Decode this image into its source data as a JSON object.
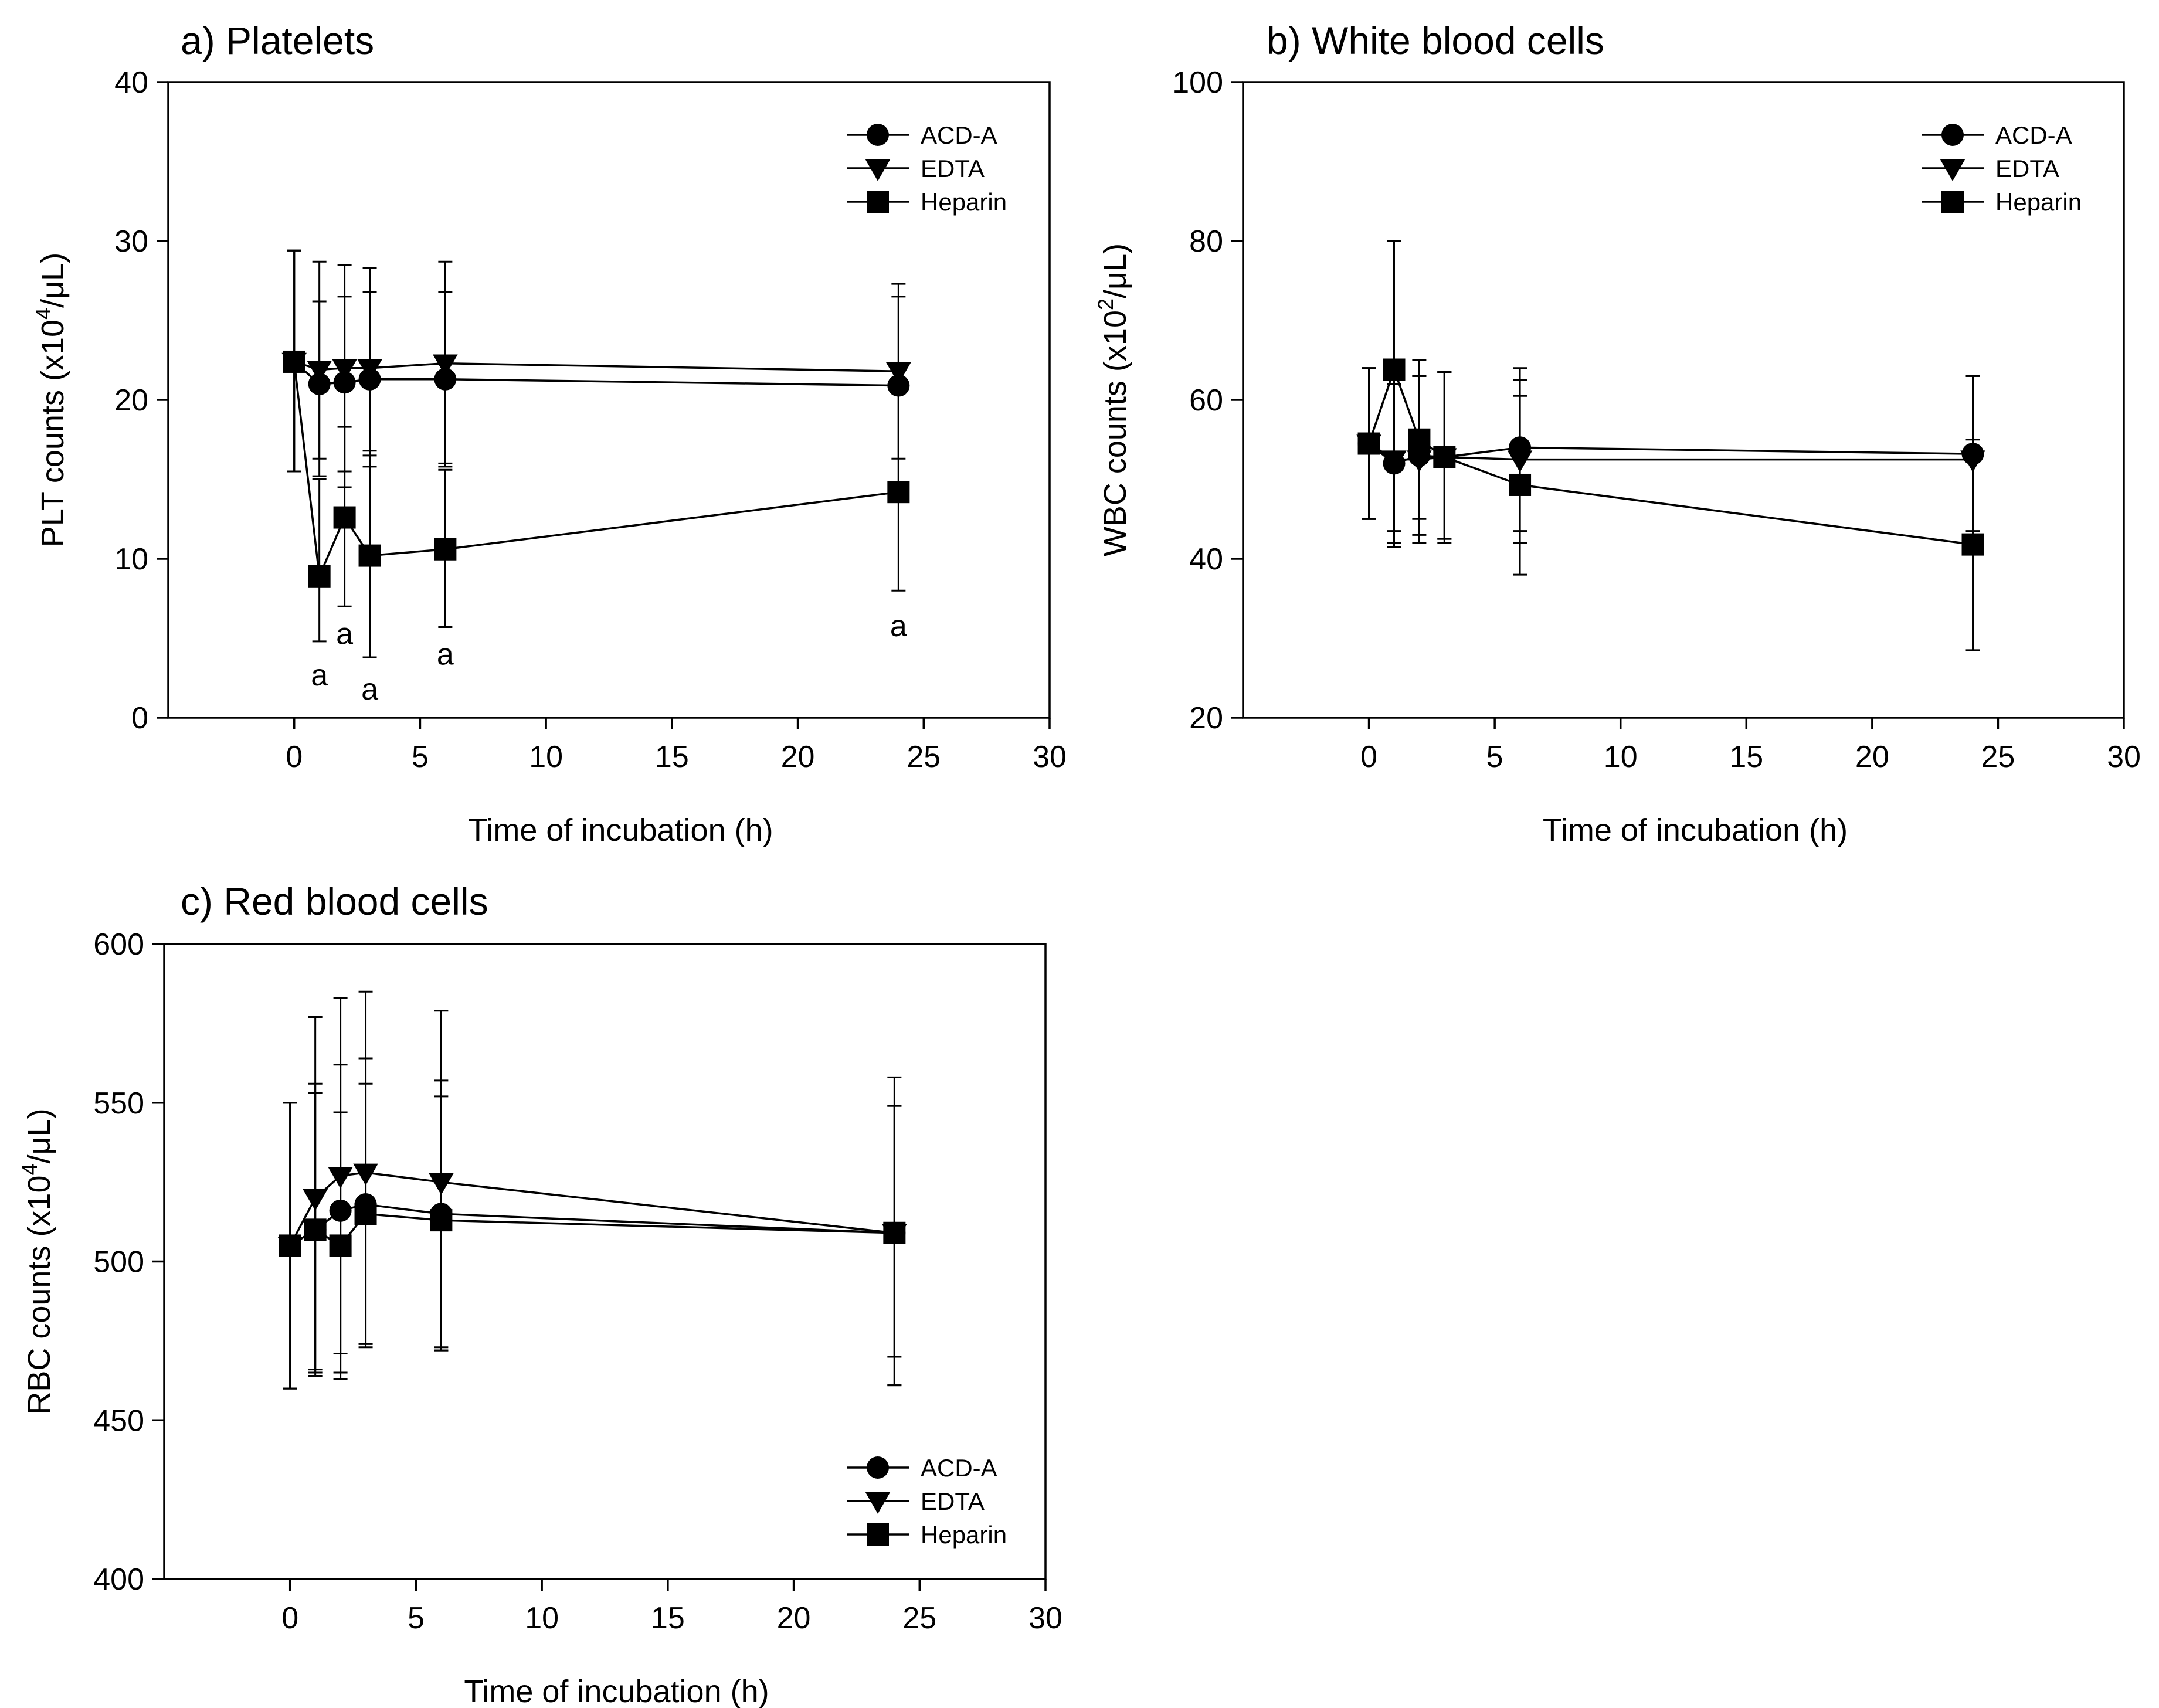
{
  "figure": {
    "series_names": [
      "ACD-A",
      "EDTA",
      "Heparin"
    ],
    "marker_shapes": [
      "circle",
      "triangle-down",
      "square"
    ],
    "color": "#000000"
  },
  "chart_data": [
    {
      "type": "line",
      "title": "a) Platelets",
      "xlabel": "Time of incubation (h)",
      "ylabel_main": "PLT counts (x10",
      "ylabel_sup": "4",
      "ylabel_tail": "/μL)",
      "xlim": [
        -5,
        30
      ],
      "ylim": [
        0,
        40
      ],
      "xticks": [
        0,
        5,
        10,
        15,
        20,
        25,
        30
      ],
      "yticks": [
        0,
        10,
        20,
        30,
        40
      ],
      "x": [
        0,
        1,
        2,
        3,
        6,
        24
      ],
      "legend_position": "top-right",
      "series": [
        {
          "name": "ACD-A",
          "values": [
            22.4,
            21.0,
            21.1,
            21.3,
            21.3,
            20.9
          ],
          "err_low": [
            15.5,
            16.3,
            14.5,
            16.5,
            15.8,
            14.5
          ],
          "err_high": [
            29.4,
            26.2,
            26.5,
            26.8,
            26.8,
            26.5
          ]
        },
        {
          "name": "EDTA",
          "values": [
            22.4,
            21.9,
            22.0,
            22.0,
            22.3,
            21.8
          ],
          "err_low": [
            15.5,
            15.2,
            15.5,
            15.8,
            16.0,
            16.3
          ],
          "err_high": [
            29.4,
            28.7,
            28.5,
            28.3,
            28.7,
            27.3
          ]
        },
        {
          "name": "Heparin",
          "values": [
            22.4,
            8.9,
            12.6,
            10.2,
            10.6,
            14.2
          ],
          "err_low": [
            15.5,
            4.8,
            7.0,
            3.8,
            5.7,
            8.0
          ],
          "err_high": [
            29.4,
            15.0,
            18.3,
            16.8,
            15.6,
            20.4
          ]
        }
      ],
      "annotations": [
        {
          "x": 1,
          "y": 2.7,
          "text": "a"
        },
        {
          "x": 2,
          "y": 5.3,
          "text": "a"
        },
        {
          "x": 3,
          "y": 1.8,
          "text": "a"
        },
        {
          "x": 6,
          "y": 4.0,
          "text": "a"
        },
        {
          "x": 24,
          "y": 5.8,
          "text": "a"
        }
      ]
    },
    {
      "type": "line",
      "title": "b) White blood cells",
      "xlabel": "Time of incubation (h)",
      "ylabel_main": "WBC counts (x10",
      "ylabel_sup": "2",
      "ylabel_tail": "/μL)",
      "xlim": [
        -5,
        30
      ],
      "ylim": [
        20,
        100
      ],
      "xticks": [
        0,
        5,
        10,
        15,
        20,
        25,
        30
      ],
      "yticks": [
        20,
        40,
        60,
        80,
        100
      ],
      "x": [
        0,
        1,
        2,
        3,
        6,
        24
      ],
      "legend_position": "top-right",
      "series": [
        {
          "name": "ACD-A",
          "values": [
            54.5,
            52.0,
            53.0,
            52.8,
            54.0,
            53.2
          ],
          "err_low": [
            45.0,
            42.0,
            43.0,
            42.5,
            42.0,
            43.5
          ],
          "err_high": [
            64.0,
            62.0,
            63.0,
            63.5,
            64.0,
            63.0
          ]
        },
        {
          "name": "EDTA",
          "values": [
            54.5,
            52.5,
            52.5,
            52.8,
            52.5,
            52.5
          ],
          "err_low": [
            45.0,
            43.5,
            42.0,
            42.5,
            43.5,
            42.5
          ],
          "err_high": [
            64.0,
            62.5,
            63.0,
            63.5,
            62.5,
            63.0
          ]
        },
        {
          "name": "Heparin",
          "values": [
            54.5,
            63.8,
            55.0,
            52.8,
            49.3,
            41.8
          ],
          "err_low": [
            45.0,
            41.5,
            45.0,
            42.0,
            38.0,
            28.5
          ],
          "err_high": [
            64.0,
            80.0,
            65.0,
            63.5,
            60.5,
            55.0
          ]
        }
      ]
    },
    {
      "type": "line",
      "title": "c) Red blood cells",
      "xlabel": "Time of incubation (h)",
      "ylabel_main": "RBC counts (x10",
      "ylabel_sup": "4",
      "ylabel_tail": "/μL)",
      "xlim": [
        -5,
        30
      ],
      "ylim": [
        400,
        600
      ],
      "xticks": [
        0,
        5,
        10,
        15,
        20,
        25,
        30
      ],
      "yticks": [
        400,
        450,
        500,
        550,
        600
      ],
      "x": [
        0,
        1,
        2,
        3,
        6,
        24
      ],
      "legend_position": "bottom-right",
      "series": [
        {
          "name": "ACD-A",
          "values": [
            505,
            510,
            516,
            518,
            515,
            509
          ],
          "err_low": [
            460,
            466,
            471,
            474,
            473,
            470
          ],
          "err_high": [
            550,
            553,
            562,
            564,
            557,
            549
          ]
        },
        {
          "name": "EDTA",
          "values": [
            505,
            520,
            527,
            528,
            525,
            509
          ],
          "err_low": [
            460,
            464,
            465,
            474,
            472,
            461
          ],
          "err_high": [
            550,
            577,
            583,
            585,
            579,
            558
          ]
        },
        {
          "name": "Heparin",
          "values": [
            505,
            510,
            505,
            515,
            513,
            509
          ],
          "err_low": [
            460,
            465,
            463,
            473,
            472,
            461
          ],
          "err_high": [
            550,
            556,
            547,
            556,
            552,
            549
          ]
        }
      ]
    }
  ]
}
